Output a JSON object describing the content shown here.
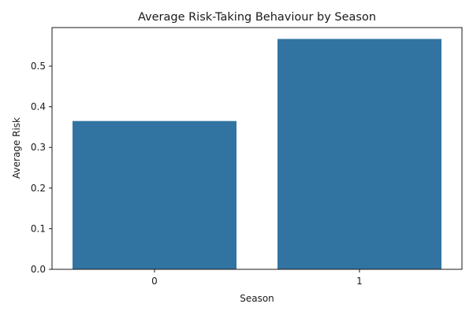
{
  "chart_data": {
    "type": "bar",
    "title": "Average Risk-Taking Behaviour by Season",
    "xlabel": "Season",
    "ylabel": "Average Risk",
    "categories": [
      "0",
      "1"
    ],
    "values": [
      0.365,
      0.567
    ],
    "ylim": [
      0,
      0.595
    ],
    "yticks": [
      0.0,
      0.1,
      0.2,
      0.3,
      0.4,
      0.5
    ],
    "ytick_labels": [
      "0.0",
      "0.1",
      "0.2",
      "0.3",
      "0.4",
      "0.5"
    ],
    "bar_color": "#3274a1",
    "grid": false,
    "legend": "none"
  }
}
